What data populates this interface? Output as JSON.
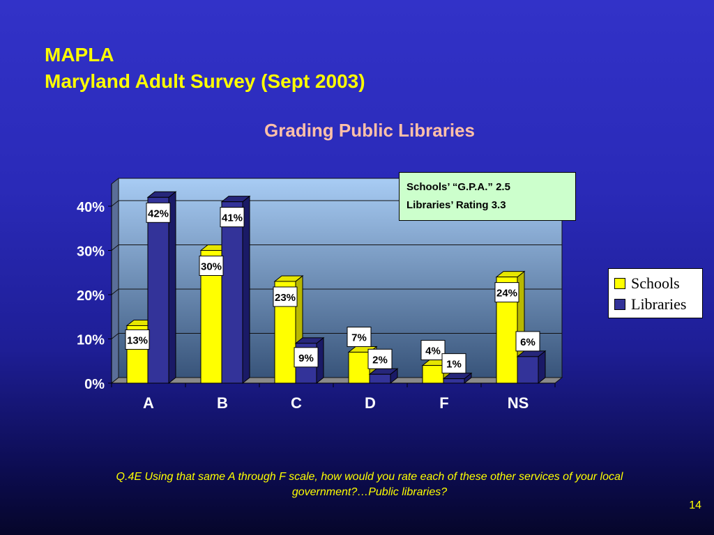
{
  "slide": {
    "title_line1": "MAPLA",
    "title_line2": "Maryland Adult Survey (Sept 2003)",
    "question": "Q.4E  Using that same A through F scale, how would you rate each of these other services of your local government?…Public libraries?",
    "page_number": "14"
  },
  "note": {
    "line1": "Schools’ “G.P.A.” 2.5",
    "line2": "Libraries’ Rating 3.3"
  },
  "colors": {
    "schools": "#ffff00",
    "libraries": "#333399",
    "plot_top": "#a8ccf4",
    "plot_bottom": "#38547a"
  },
  "chart_data": {
    "type": "bar",
    "title": "Grading Public Libraries",
    "categories": [
      "A",
      "B",
      "C",
      "D",
      "F",
      "NS"
    ],
    "series": [
      {
        "name": "Schools",
        "values": [
          13,
          30,
          23,
          7,
          4,
          24
        ],
        "labels": [
          "13%",
          "30%",
          "23%",
          "7%",
          "4%",
          "24%"
        ]
      },
      {
        "name": "Libraries",
        "values": [
          42,
          41,
          9,
          2,
          1,
          6
        ],
        "labels": [
          "42%",
          "41%",
          "9%",
          "2%",
          "1%",
          "6%"
        ]
      }
    ],
    "yticks": [
      "0%",
      "10%",
      "20%",
      "30%",
      "40%"
    ],
    "ylim": [
      0,
      40
    ],
    "grid": true,
    "legend": "right"
  }
}
